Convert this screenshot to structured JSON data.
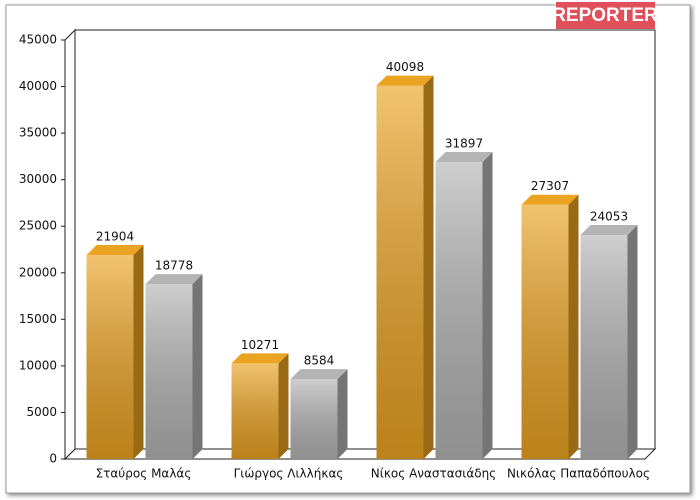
{
  "chart_data": {
    "type": "bar3d",
    "logo": "REPORTER",
    "categories": [
      "Σταύρος Μαλάς",
      "Γιώργος Λιλλήκας",
      "Νίκος Αναστασιάδης",
      "Νικόλας Παπαδόπουλος"
    ],
    "series": [
      {
        "color": "#eba322",
        "values": [
          21904,
          10271,
          40098,
          27307
        ]
      },
      {
        "color": "#b4b4b4",
        "values": [
          18778,
          8584,
          31897,
          24053
        ]
      }
    ],
    "ylim": [
      0,
      45000
    ],
    "yticks": [
      0,
      5000,
      10000,
      15000,
      20000,
      25000,
      30000,
      35000,
      40000,
      45000
    ]
  }
}
